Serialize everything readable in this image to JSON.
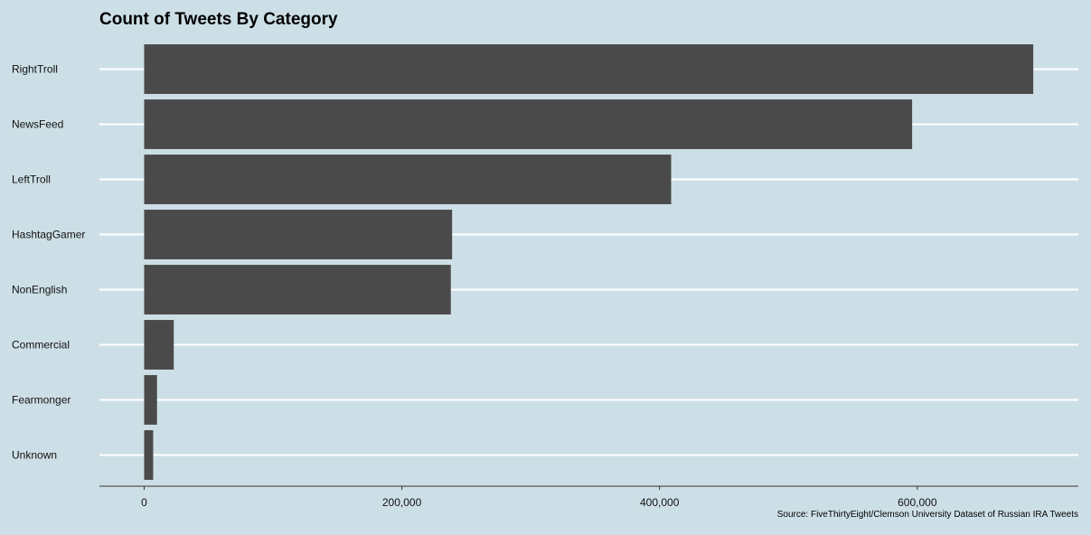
{
  "chart_data": {
    "type": "bar",
    "orientation": "horizontal",
    "title": "Count of Tweets By Category",
    "caption": "Source: FiveThirtyEight/Clemson University Dataset of Russian IRA Tweets",
    "xlabel": "",
    "ylabel": "",
    "categories": [
      "RightTroll",
      "NewsFeed",
      "LeftTroll",
      "HashtagGamer",
      "NonEnglish",
      "Commercial",
      "Fearmonger",
      "Unknown"
    ],
    "values": [
      690000,
      596000,
      409000,
      239000,
      238000,
      23000,
      10000,
      7000
    ],
    "x_ticks": [
      0,
      200000,
      400000,
      600000
    ],
    "x_tick_labels": [
      "0",
      "200,000",
      "400,000",
      "600,000"
    ],
    "xlim": [
      -34700,
      725000
    ],
    "grid": "horizontal-major",
    "legend": "none",
    "colors": {
      "background": "#cddfe6",
      "bar": "#4a4a4a",
      "gridline": "#ffffff",
      "axis": "#333333"
    }
  }
}
